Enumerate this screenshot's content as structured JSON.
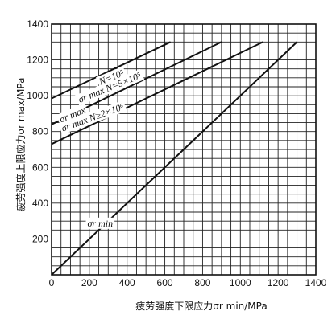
{
  "chart_data": {
    "type": "line",
    "title": "",
    "xlabel": "疲劳强度下限应力σr min/MPa",
    "ylabel": "疲劳强度上限应力σr max/MPa",
    "xlim": [
      0,
      1400
    ],
    "ylim": [
      0,
      1400
    ],
    "x_ticks": [
      "0",
      "200",
      "400",
      "600",
      "800",
      "1000",
      "1200",
      "1400"
    ],
    "y_ticks": [
      "200",
      "400",
      "600",
      "800",
      "1000",
      "1200",
      "1400"
    ],
    "grid": true,
    "series": [
      {
        "x": [
          0,
          630
        ],
        "y": [
          985,
          1300
        ]
      },
      {
        "x": [
          0,
          900
        ],
        "y": [
          840,
          1300
        ]
      },
      {
        "x": [
          0,
          1120
        ],
        "y": [
          730,
          1300
        ]
      },
      {
        "x": [
          0,
          1300
        ],
        "y": [
          0,
          1300
        ]
      }
    ],
    "annotations": [
      {
        "text": "N=10⁵",
        "x": 260,
        "y": 1060
      },
      {
        "text": "σr max N=5×10⁵",
        "x": 150,
        "y": 960
      },
      {
        "text": "σr max",
        "x": 50,
        "y": 850
      },
      {
        "text": "σr max N≥2×10⁶",
        "x": 60,
        "y": 800
      },
      {
        "text": "σr min",
        "x": 190,
        "y": 270
      }
    ]
  }
}
